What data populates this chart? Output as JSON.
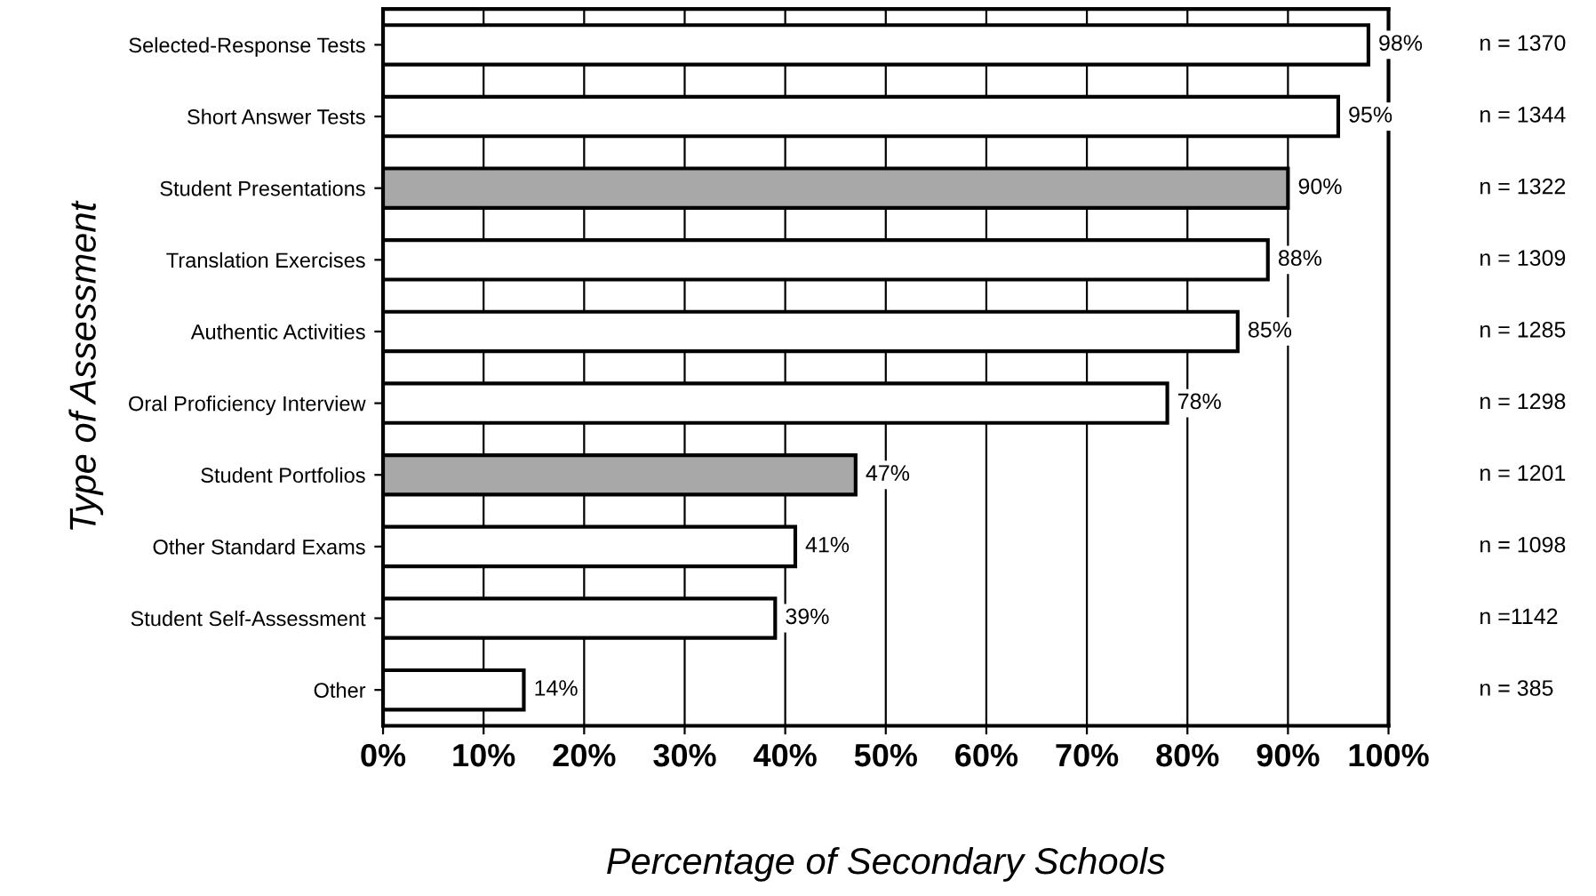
{
  "chart_data": {
    "type": "bar",
    "orientation": "horizontal",
    "categories": [
      "Selected-Response Tests",
      "Short Answer Tests",
      "Student Presentations",
      "Translation Exercises",
      "Authentic Activities",
      "Oral Proficiency Interview",
      "Student Portfolios",
      "Other Standard Exams",
      "Student Self-Assessment",
      "Other"
    ],
    "values": [
      98,
      95,
      90,
      88,
      85,
      78,
      47,
      41,
      39,
      14
    ],
    "value_labels": [
      "98%",
      "95%",
      "90%",
      "88%",
      "85%",
      "78%",
      "47%",
      "41%",
      "39%",
      "14%"
    ],
    "colors": [
      "#ffffff",
      "#ffffff",
      "#a8a8a8",
      "#ffffff",
      "#ffffff",
      "#ffffff",
      "#a8a8a8",
      "#ffffff",
      "#ffffff",
      "#ffffff"
    ],
    "xlabel": "Percentage of Secondary Schools",
    "ylabel": "Type of Assessment",
    "xlim": [
      0,
      100
    ],
    "xticks": [
      {
        "value": 0,
        "label": "0%"
      },
      {
        "value": 10,
        "label": "10%"
      },
      {
        "value": 20,
        "label": "20%"
      },
      {
        "value": 30,
        "label": "30%"
      },
      {
        "value": 40,
        "label": "40%"
      },
      {
        "value": 50,
        "label": "50%"
      },
      {
        "value": 60,
        "label": "60%"
      },
      {
        "value": 70,
        "label": "70%"
      },
      {
        "value": 80,
        "label": "80%"
      },
      {
        "value": 90,
        "label": "90%"
      },
      {
        "value": 100,
        "label": "100%"
      }
    ],
    "grid": "x",
    "legend": false,
    "annotations": [
      "n = 1370",
      "n = 1344",
      "n = 1322",
      "n = 1309",
      "n = 1285",
      "n = 1298",
      "n = 1201",
      "n = 1098",
      "n =1142",
      "n = 385"
    ]
  }
}
